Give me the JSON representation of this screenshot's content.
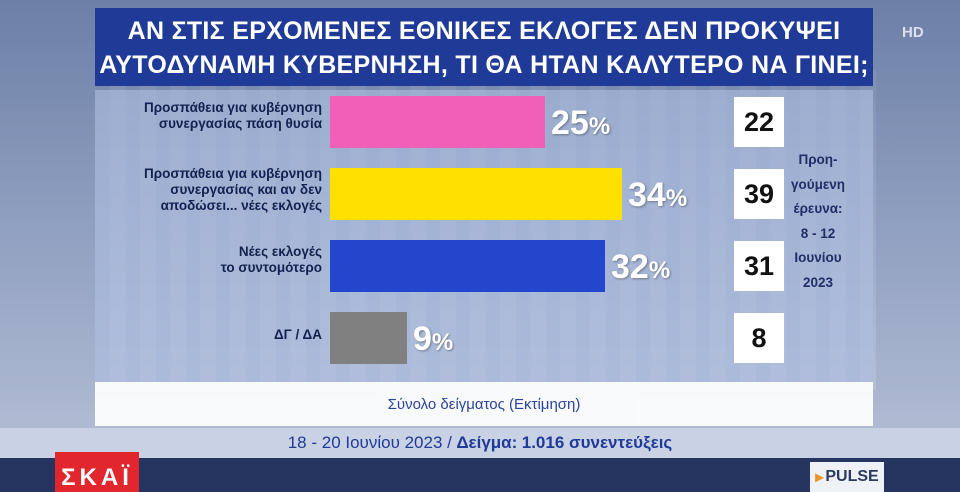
{
  "title_line1": "ΑΝ ΣΤΙΣ ΕΡΧΟΜΕΝΕΣ ΕΘΝΙΚΕΣ ΕΚΛΟΓΕΣ ΔΕΝ ΠΡΟΚΥΨΕΙ",
  "title_line2": "ΑΥΤΟΔΥΝΑΜΗ ΚΥΒΕΡΝΗΣΗ, ΤΙ ΘΑ ΗΤΑΝ ΚΑΛΥΤΕΡΟ ΝΑ ΓΙΝΕΙ;",
  "hd_badge": "HD",
  "chart_data": {
    "type": "bar",
    "orientation": "horizontal",
    "categories": [
      "Προσπάθεια για κυβέρνηση συνεργασίας πάση θυσία",
      "Προσπάθεια για κυβέρνηση συνεργασίας και αν δεν αποδώσει... νέες εκλογές",
      "Νέες εκλογές το συντομότερο",
      "ΔΓ / ΔΑ"
    ],
    "series": [
      {
        "values": [
          25,
          34,
          32,
          9
        ],
        "colors": [
          "#f25fb8",
          "#ffe000",
          "#2446cc",
          "#808080"
        ]
      }
    ],
    "value_labels": [
      "25",
      "34",
      "32",
      "9"
    ],
    "unit": "%",
    "previous_survey_values": [
      "22",
      "39",
      "31",
      "8"
    ],
    "previous_survey_note": "Προη-\nγούμενη\nέρευνα:\n8 - 12\nΙουνίου\n2023",
    "xlim": [
      0,
      100
    ]
  },
  "labels": [
    "Προσπάθεια για κυβέρνηση\nσυνεργασίας πάση θυσία",
    "Προσπάθεια για κυβέρνηση\nσυνεργασίας και αν δεν\nαποδώσει... νέες εκλογές",
    "Νέες εκλογές\nτο συντομότερο",
    "ΔΓ / ΔΑ"
  ],
  "sample_note": "Σύνολο δείγματος (Εκτίμηση)",
  "footer": {
    "dates": "18 - 20 Ιουνίου 2023 /",
    "sample_label": "Δείγμα:",
    "sample_value": "1.016 συνεντεύξεις"
  },
  "channel_logo": "ΣΚΑΪ",
  "pollster_logo": "PULSE"
}
